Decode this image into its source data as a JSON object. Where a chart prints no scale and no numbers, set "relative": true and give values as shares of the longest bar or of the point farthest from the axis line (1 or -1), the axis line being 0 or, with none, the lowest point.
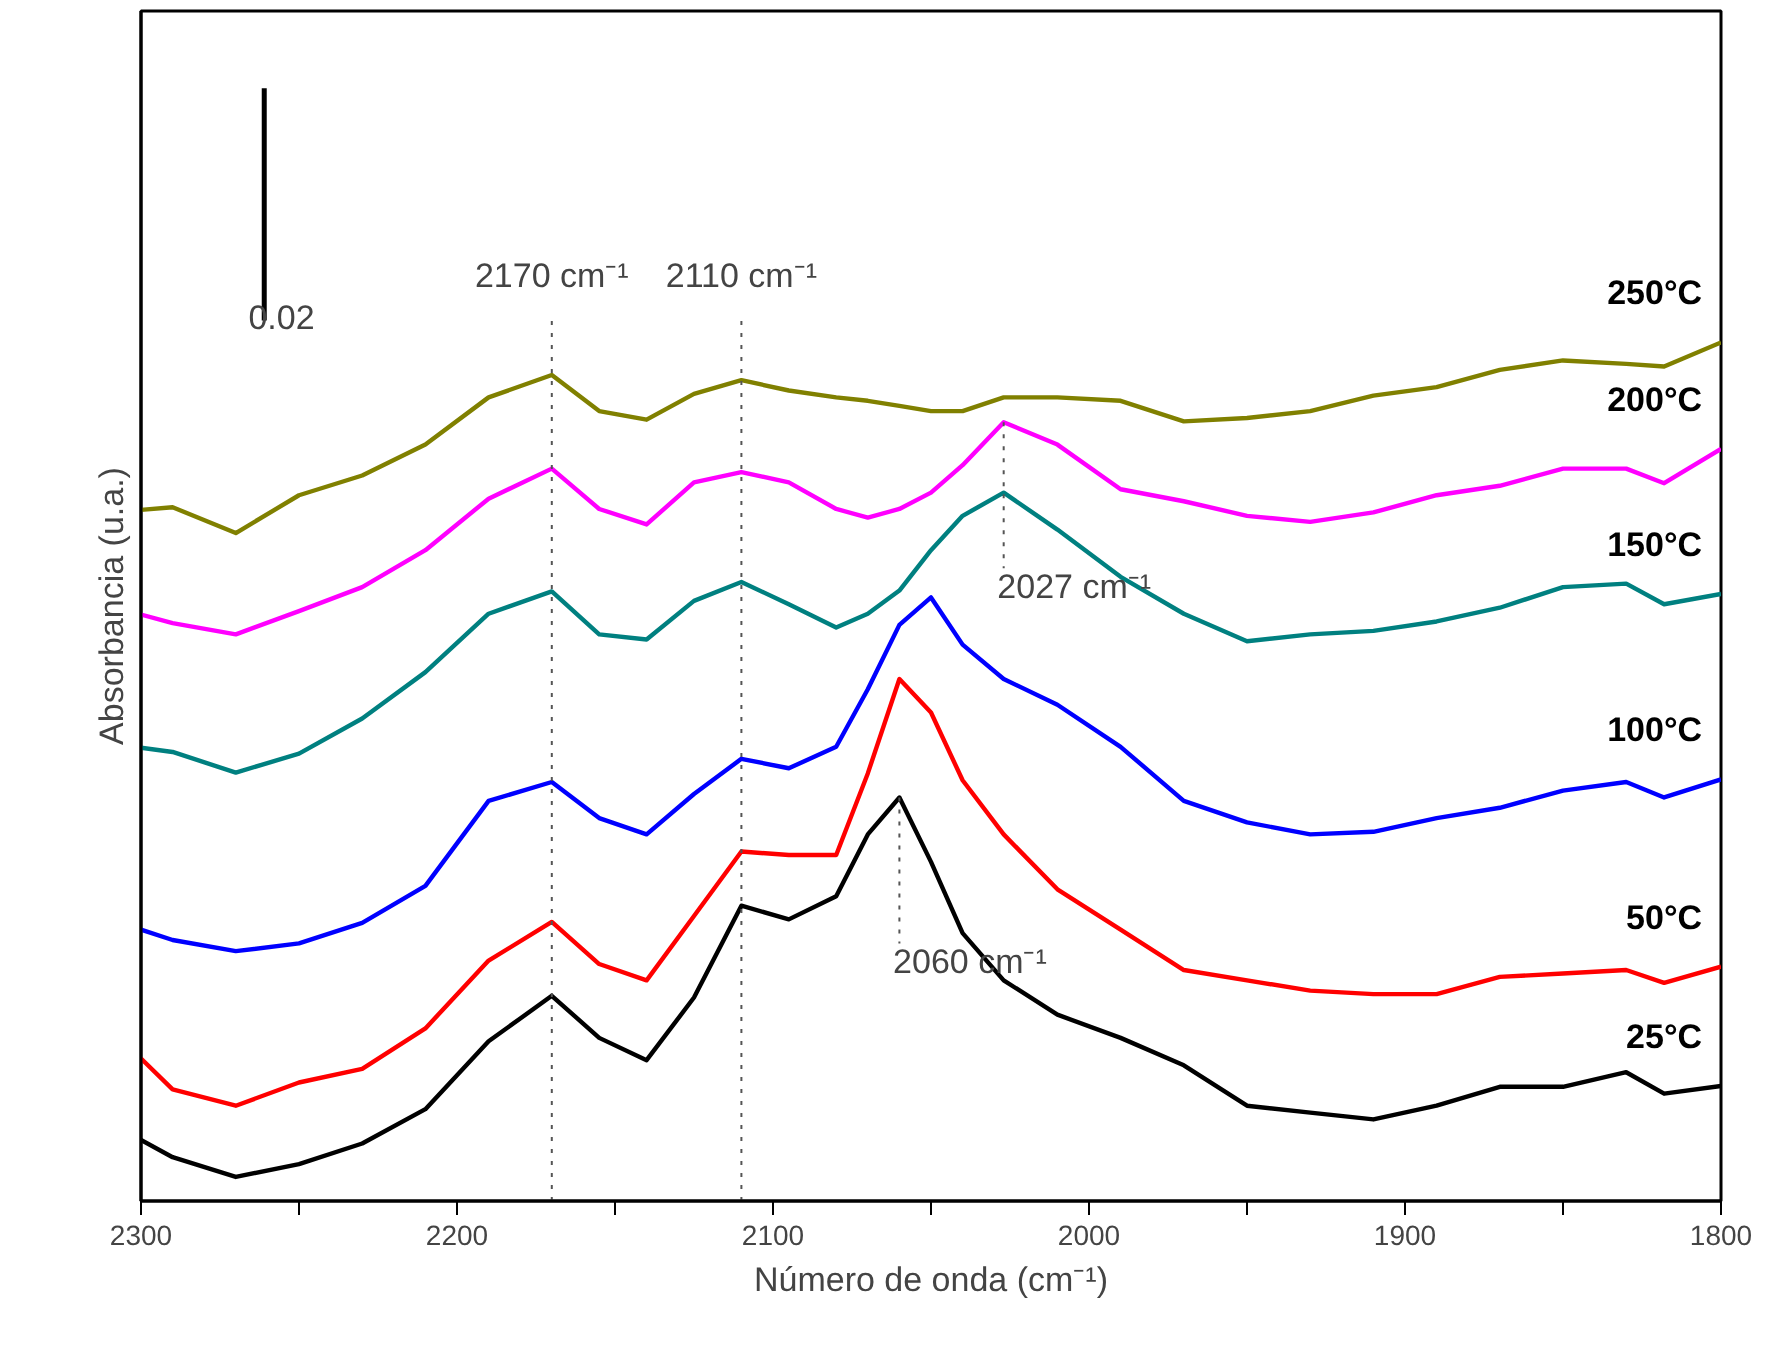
{
  "chart_data": {
    "type": "line",
    "relative": true,
    "xlabel": "Número de onda (cm⁻¹)",
    "ylabel": "Absorbancia (u.a.)",
    "x": [
      2300,
      2290,
      2270,
      2250,
      2230,
      2210,
      2190,
      2170,
      2155,
      2140,
      2125,
      2110,
      2095,
      2080,
      2070,
      2060,
      2050,
      2040,
      2027,
      2010,
      1990,
      1970,
      1950,
      1930,
      1910,
      1890,
      1870,
      1850,
      1830,
      1818,
      1800
    ],
    "xlim": [
      2300,
      1800
    ],
    "xticks": [
      2300,
      {
        "value": 2250,
        "label": null
      },
      2200,
      {
        "value": 2150,
        "label": null
      },
      2100,
      {
        "value": 2050,
        "label": null
      },
      2000,
      {
        "value": 1950,
        "label": null
      },
      1900,
      {
        "value": 1850,
        "label": null
      },
      1800
    ],
    "series": [
      {
        "name": "25°C",
        "color": "#000000",
        "values": [
          0.071,
          0.051,
          0.028,
          0.043,
          0.067,
          0.107,
          0.186,
          0.239,
          0.19,
          0.164,
          0.237,
          0.344,
          0.328,
          0.355,
          0.427,
          0.47,
          0.395,
          0.312,
          0.257,
          0.217,
          0.19,
          0.158,
          0.111,
          0.103,
          0.095,
          0.111,
          0.133,
          0.133,
          0.15,
          0.125,
          0.134
        ]
      },
      {
        "name": "50°C",
        "color": "#ff0000",
        "values": [
          0.166,
          0.13,
          0.111,
          0.138,
          0.154,
          0.201,
          0.28,
          0.325,
          0.276,
          0.257,
          0.332,
          0.407,
          0.403,
          0.403,
          0.498,
          0.608,
          0.569,
          0.49,
          0.427,
          0.363,
          0.316,
          0.269,
          0.257,
          0.245,
          0.241,
          0.241,
          0.261,
          0.265,
          0.269,
          0.254,
          0.273
        ]
      },
      {
        "name": "100°C",
        "color": "#0000ff",
        "values": [
          0.316,
          0.304,
          0.291,
          0.3,
          0.324,
          0.367,
          0.466,
          0.488,
          0.446,
          0.427,
          0.474,
          0.515,
          0.504,
          0.529,
          0.596,
          0.671,
          0.703,
          0.648,
          0.608,
          0.578,
          0.529,
          0.466,
          0.441,
          0.427,
          0.43,
          0.446,
          0.458,
          0.478,
          0.488,
          0.47,
          0.491
        ]
      },
      {
        "name": "150°C",
        "color": "#008080",
        "values": [
          0.528,
          0.523,
          0.499,
          0.521,
          0.562,
          0.616,
          0.684,
          0.71,
          0.66,
          0.654,
          0.699,
          0.721,
          0.695,
          0.668,
          0.684,
          0.711,
          0.758,
          0.798,
          0.825,
          0.782,
          0.727,
          0.684,
          0.652,
          0.66,
          0.664,
          0.675,
          0.691,
          0.715,
          0.719,
          0.695,
          0.707
        ]
      },
      {
        "name": "200°C",
        "color": "#ff00ff",
        "values": [
          0.683,
          0.673,
          0.66,
          0.687,
          0.715,
          0.758,
          0.818,
          0.853,
          0.806,
          0.788,
          0.837,
          0.849,
          0.837,
          0.806,
          0.796,
          0.806,
          0.825,
          0.857,
          0.907,
          0.881,
          0.829,
          0.815,
          0.798,
          0.791,
          0.802,
          0.822,
          0.833,
          0.853,
          0.853,
          0.836,
          0.876
        ]
      },
      {
        "name": "250°C",
        "color": "#808000",
        "values": [
          0.805,
          0.808,
          0.778,
          0.822,
          0.845,
          0.881,
          0.936,
          0.962,
          0.92,
          0.91,
          0.94,
          0.956,
          0.944,
          0.936,
          0.932,
          0.926,
          0.92,
          0.92,
          0.936,
          0.936,
          0.932,
          0.908,
          0.912,
          0.92,
          0.938,
          0.948,
          0.968,
          0.979,
          0.975,
          0.972,
          1.0
        ]
      }
    ],
    "ref_lines": [
      {
        "axis": "x",
        "value": 2170,
        "label": "2170 cm⁻¹",
        "line_style": "dotted"
      },
      {
        "axis": "x",
        "value": 2110,
        "label": "2110 cm⁻¹",
        "line_style": "dotted"
      }
    ],
    "annotations": [
      {
        "text": "2027 cm⁻¹",
        "x": 2027,
        "y": 0.907
      },
      {
        "text": "2060 cm⁻¹",
        "x": 2060,
        "y": 0.47
      },
      "0.02"
    ],
    "grid": false,
    "legend": false,
    "tick_labels": "x",
    "marker": "none",
    "line_style": "solid"
  }
}
